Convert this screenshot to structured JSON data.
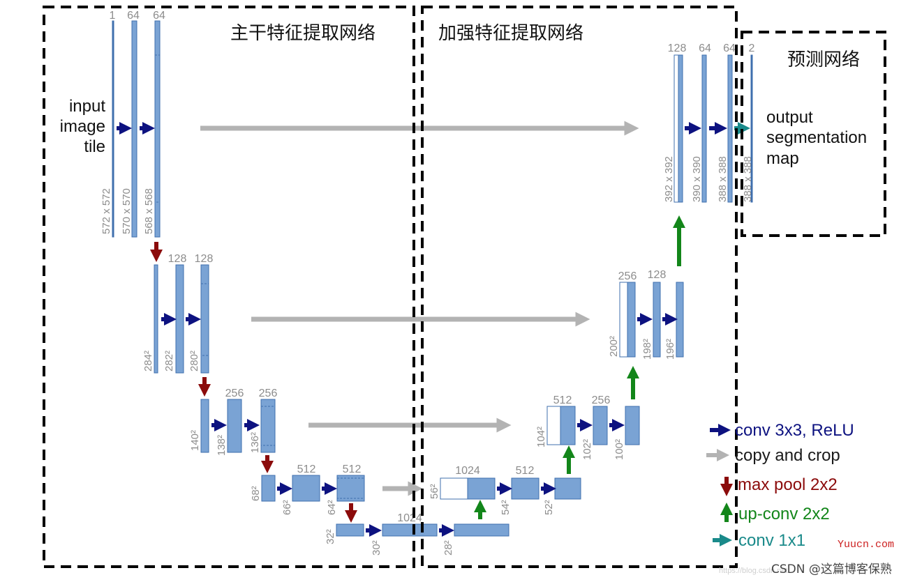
{
  "colors": {
    "feature": "#7aa3d4",
    "feature_stroke": "#3f6fae",
    "conv_arrow": "#0d1280",
    "copy_arrow": "#b3b3b3",
    "pool_arrow": "#8b0b0b",
    "upconv_arrow": "#13861a",
    "conv1x1_arrow": "#1a8a8a",
    "region_border": "#000000"
  },
  "regions": {
    "backbone": "主干特征提取网络",
    "enhance": "加强特征提取网络",
    "predict": "预测网络"
  },
  "labels": {
    "input": [
      "input",
      "image",
      "tile"
    ],
    "output": [
      "output",
      "segmentation",
      "map"
    ]
  },
  "channels": {
    "c1": "1",
    "c64a": "64",
    "c64b": "64",
    "c128a": "128",
    "c128b": "128",
    "c256a": "256",
    "c256b": "256",
    "c512a": "512",
    "c512b": "512",
    "c1024a": "1024",
    "c1024b": "1024",
    "c512c": "512",
    "c512d": "512",
    "c256c": "256",
    "c256d": "256",
    "c256e": "256",
    "c128c": "128",
    "c128d": "128",
    "c64c": "64",
    "c64d": "64",
    "c2": "2"
  },
  "dims": {
    "d572": "572 x 572",
    "d570": "570 x 570",
    "d568": "568 x 568",
    "d284": "284²",
    "d282": "282²",
    "d280": "280²",
    "d140": "140²",
    "d138": "138²",
    "d136": "136²",
    "d68": "68²",
    "d66": "66²",
    "d64": "64²",
    "d32": "32²",
    "d30": "30²",
    "d28": "28²",
    "d56": "56²",
    "d54": "54²",
    "d52": "52²",
    "d104": "104²",
    "d102": "102²",
    "d100": "100²",
    "d200": "200²",
    "d198": "198²",
    "d196": "196²",
    "d392": "392 x 392",
    "d390": "390 x 390",
    "d388a": "388 x 388",
    "d388b": "388 x 388"
  },
  "legend": [
    {
      "label": "conv 3x3, ReLU",
      "color": "#0d1280",
      "arrow": "right"
    },
    {
      "label": "copy and crop",
      "color": "#1a1a1a",
      "arrow_color": "#b3b3b3",
      "arrow": "right"
    },
    {
      "label": "max pool 2x2",
      "color": "#8b0b0b",
      "arrow": "down"
    },
    {
      "label": "up-conv 2x2",
      "color": "#13861a",
      "arrow": "up"
    },
    {
      "label": "conv 1x1",
      "color": "#1a8a8a",
      "arrow": "right"
    }
  ],
  "watermarks": {
    "blog": "https://blog.csdn.net",
    "yuucn": "Yuucn.com",
    "csdn": "CSDN @这篇博客保熟"
  }
}
